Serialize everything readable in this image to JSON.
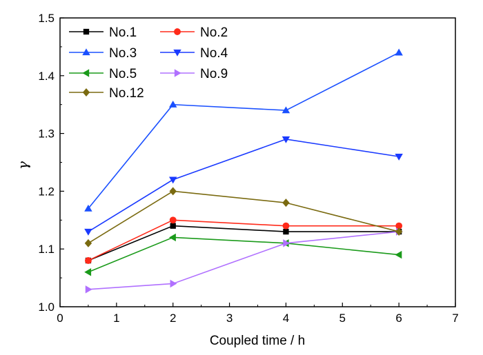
{
  "chart_data": {
    "type": "line",
    "title": "",
    "xlabel": "Coupled time / h",
    "ylabel": "γ",
    "xlim": [
      0,
      7
    ],
    "ylim": [
      1.0,
      1.5
    ],
    "xticks": [
      "0",
      "1",
      "2",
      "3",
      "4",
      "5",
      "6",
      "7"
    ],
    "yticks": [
      "1.0",
      "1.1",
      "1.2",
      "1.3",
      "1.4",
      "1.5"
    ],
    "grid": false,
    "legend_position": "top-left",
    "x": [
      0.5,
      2,
      4,
      6
    ],
    "series": [
      {
        "name": "No.1",
        "values": [
          1.08,
          1.14,
          1.13,
          1.13
        ],
        "color": "#000000",
        "marker": "square"
      },
      {
        "name": "No.2",
        "values": [
          1.08,
          1.15,
          1.14,
          1.14
        ],
        "color": "#ff2a1a",
        "marker": "circle"
      },
      {
        "name": "No.3",
        "values": [
          1.17,
          1.35,
          1.34,
          1.44
        ],
        "color": "#1a50ff",
        "marker": "triangle-up"
      },
      {
        "name": "No.4",
        "values": [
          1.13,
          1.22,
          1.29,
          1.26
        ],
        "color": "#1a3aff",
        "marker": "triangle-down"
      },
      {
        "name": "No.5",
        "values": [
          1.06,
          1.12,
          1.11,
          1.09
        ],
        "color": "#1a9a1a",
        "marker": "triangle-left"
      },
      {
        "name": "No.9",
        "values": [
          1.03,
          1.04,
          1.11,
          1.13
        ],
        "color": "#b070ff",
        "marker": "triangle-right"
      },
      {
        "name": "No.12",
        "values": [
          1.11,
          1.2,
          1.18,
          1.13
        ],
        "color": "#7a6a10",
        "marker": "diamond"
      }
    ]
  }
}
